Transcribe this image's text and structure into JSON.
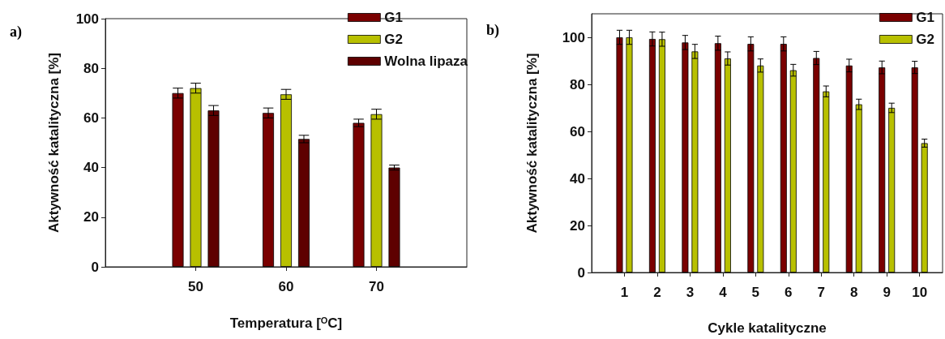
{
  "chart_data": [
    {
      "type": "bar",
      "annotations": [
        "a)"
      ],
      "xlabel": "Temperatura [$^{O}$C]",
      "ylabel": "Aktywność katalityczna [%]",
      "x": [
        50,
        60,
        70
      ],
      "xlim": [
        40,
        80
      ],
      "xticks": [
        50,
        60,
        70
      ],
      "ylim": [
        0,
        100
      ],
      "yticks": [
        0,
        20,
        40,
        60,
        80,
        100
      ],
      "series": [
        {
          "name": "G1",
          "color": "#7a0000",
          "values": [
            70,
            62,
            58
          ],
          "errors": [
            2,
            2,
            1.5
          ]
        },
        {
          "name": "G2",
          "color": "#b8c000",
          "values": [
            72,
            69.5,
            61.5
          ],
          "errors": [
            2,
            2,
            2
          ]
        },
        {
          "name": "Wolna lipaza",
          "color": "#5e0000",
          "values": [
            63,
            51.5,
            40
          ],
          "errors": [
            2,
            1.5,
            1
          ]
        }
      ],
      "legend": "top right",
      "grid": false
    },
    {
      "type": "bar",
      "annotations": [
        "b)"
      ],
      "xlabel": "Cykle katalityczne",
      "ylabel": "Aktywność katalityczna [%]",
      "x": [
        1,
        2,
        3,
        4,
        5,
        6,
        7,
        8,
        9,
        10
      ],
      "xlim": [
        0,
        10.7
      ],
      "xticks": [
        1,
        2,
        3,
        4,
        5,
        6,
        7,
        8,
        9,
        10
      ],
      "ylim": [
        0,
        110
      ],
      "yticks": [
        0,
        20,
        40,
        60,
        80,
        100
      ],
      "series": [
        {
          "name": "G1",
          "color": "#7a0000",
          "values": [
            100,
            99.3,
            97.8,
            97.5,
            97.2,
            97.2,
            91.2,
            88,
            87.2,
            87.2
          ],
          "errors": [
            3,
            3,
            3,
            3,
            3,
            3,
            2.8,
            2.7,
            2.7,
            2.6
          ]
        },
        {
          "name": "G2",
          "color": "#b8c000",
          "values": [
            100,
            99.2,
            94,
            91,
            88,
            86,
            77,
            71.5,
            70,
            55
          ],
          "errors": [
            3,
            3,
            3,
            2.8,
            2.8,
            2.5,
            2.3,
            2.2,
            2,
            1.7
          ]
        }
      ],
      "legend": "top right",
      "grid": false
    }
  ]
}
